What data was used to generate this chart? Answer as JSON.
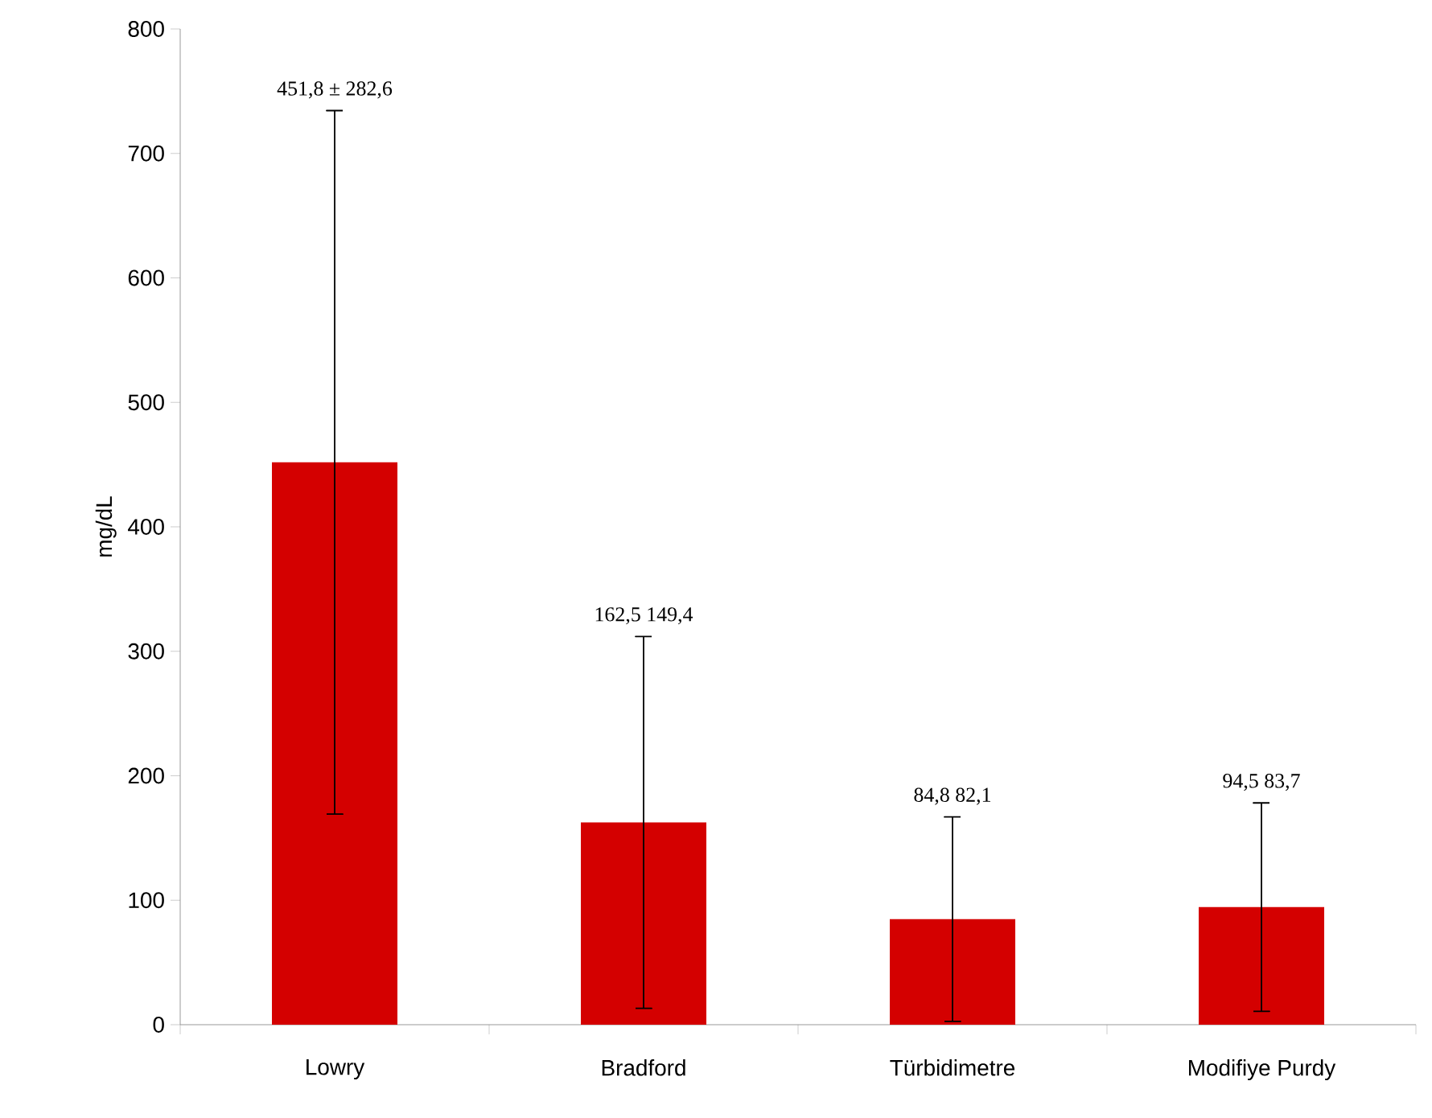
{
  "chart_data": {
    "type": "bar",
    "ylabel": "mg/dL",
    "categories": [
      "Lowry",
      "Bradford",
      "Türbidimetre",
      "Modifiye Purdy"
    ],
    "values": [
      451.8,
      162.5,
      84.8,
      94.5
    ],
    "errors": [
      282.6,
      149.4,
      82.1,
      83.7
    ],
    "annotations": [
      {
        "text": "451,8 ± 282,6",
        "x": "Lowry",
        "y": 734.4
      },
      {
        "text": "162,5   149,4",
        "x": "Bradford",
        "y": 311.9
      },
      {
        "text": "84,8   82,1",
        "x": "Türbidimetre",
        "y": 166.9
      },
      {
        "text": "94,5   83,7",
        "x": "Modifiye Purdy",
        "y": 178.2
      }
    ],
    "color": "#d40000",
    "ylim": [
      0,
      800
    ],
    "yticks": [
      0,
      100,
      200,
      300,
      400,
      500,
      600,
      700,
      800
    ],
    "grid": false
  }
}
